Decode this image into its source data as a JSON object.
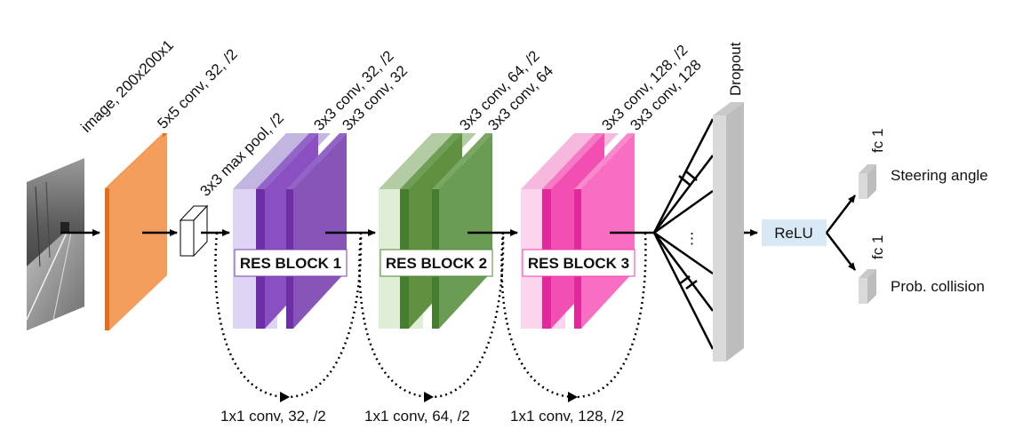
{
  "input": {
    "label": "image, 200x200x1"
  },
  "conv1": {
    "label": "5x5 conv, 32, /2"
  },
  "maxpool": {
    "label": "3x3 max pool, /2"
  },
  "res_blocks": [
    {
      "title": "RES BLOCK 1",
      "conv_a": "3x3 conv, 32, /2",
      "conv_b": "3x3 conv, 32",
      "shortcut": "1x1 conv, 32, /2",
      "colors": {
        "light": "#d9d2f2",
        "mid": "#7b3fb0",
        "dark": "#8a55b5",
        "top": "#b9a7d8"
      }
    },
    {
      "title": "RES BLOCK 2",
      "conv_a": "3x3 conv, 64, /2",
      "conv_b": "3x3 conv, 64",
      "shortcut": "1x1 conv, 64, /2",
      "colors": {
        "light": "#dbe9d1",
        "mid": "#4e8a34",
        "dark": "#6b9a56",
        "top": "#b3cca4"
      }
    },
    {
      "title": "RES BLOCK 3",
      "conv_a": "3x3 conv, 128, /2",
      "conv_b": "3x3 conv, 128",
      "shortcut": "1x1 conv, 128, /2",
      "colors": {
        "light": "#fbd0ea",
        "mid": "#f03caa",
        "dark": "#f76ec3",
        "top": "#f7b3dc"
      }
    }
  ],
  "dropout": {
    "label": "Dropout",
    "ellipsis": "⋮"
  },
  "relu": {
    "label": "ReLU"
  },
  "outputs": [
    {
      "fc_label": "fc 1",
      "name": "Steering angle"
    },
    {
      "fc_label": "fc 1",
      "name": "Prob. collision"
    }
  ]
}
